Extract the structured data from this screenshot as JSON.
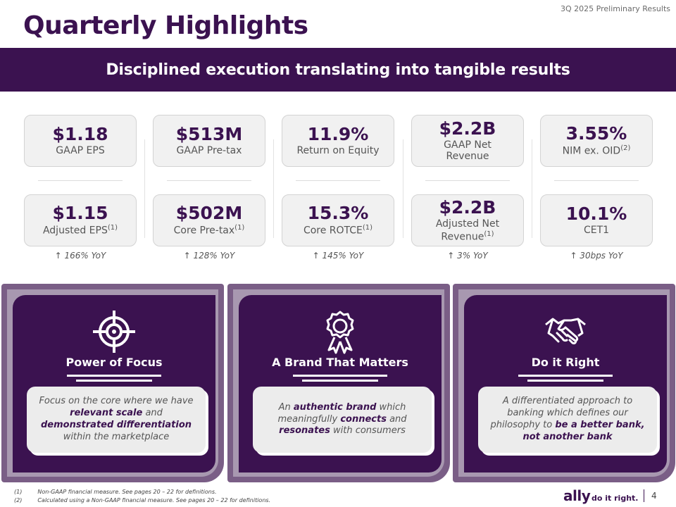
{
  "header": {
    "deck_label": "3Q 2025 Preliminary Results",
    "title": "Quarterly Highlights"
  },
  "banner": {
    "text": "Disciplined execution translating into tangible results"
  },
  "metrics_top": [
    {
      "value": "$1.18",
      "label": "GAAP EPS",
      "sup": ""
    },
    {
      "value": "$513M",
      "label": "GAAP Pre-tax",
      "sup": ""
    },
    {
      "value": "11.9%",
      "label": "Return on Equity",
      "sup": ""
    },
    {
      "value": "$2.2B",
      "label": "GAAP Net Revenue",
      "sup": ""
    },
    {
      "value": "3.55%",
      "label": "NIM ex. OID",
      "sup": "(2)"
    }
  ],
  "metrics_bottom": [
    {
      "value": "$1.15",
      "label": "Adjusted EPS",
      "sup": "(1)",
      "yoy": "↑ 166% YoY"
    },
    {
      "value": "$502M",
      "label": "Core Pre-tax",
      "sup": "(1)",
      "yoy": "↑ 128% YoY"
    },
    {
      "value": "15.3%",
      "label": "Core ROTCE",
      "sup": "(1)",
      "yoy": "↑ 145% YoY"
    },
    {
      "value": "$2.2B",
      "label": "Adjusted Net Revenue",
      "sup": "(1)",
      "yoy": "↑ 3% YoY"
    },
    {
      "value": "10.1%",
      "label": "CET1",
      "sup": "",
      "yoy": "↑ 30bps YoY"
    }
  ],
  "panels": [
    {
      "title": "Power of Focus",
      "icon": "target-icon",
      "parts": [
        "Focus on the core where we have ",
        "relevant scale",
        " and ",
        "demonstrated differentiation",
        " within the marketplace"
      ]
    },
    {
      "title": "A Brand That Matters",
      "icon": "award-ribbon-icon",
      "parts": [
        "An ",
        "authentic brand",
        " which meaningfully ",
        "connects",
        " and ",
        "resonates",
        " with consumers"
      ]
    },
    {
      "title": "Do it Right",
      "icon": "handshake-icon",
      "parts": [
        "A differentiated approach to banking which defines our philosophy to ",
        "be a better bank, not another bank"
      ]
    }
  ],
  "footnotes": [
    {
      "marker": "(1)",
      "text": "Non-GAAP financial measure. See pages 20 – 22 for definitions."
    },
    {
      "marker": "(2)",
      "text": "Calculated using a Non-GAAP financial measure. See pages 20 – 22 for definitions."
    }
  ],
  "footer": {
    "brand": "ally",
    "tagline": "do it right.",
    "page_number": "4"
  },
  "colors": {
    "primary": "#3b1250",
    "panel_border": "#7a5e86",
    "panel_border_light": "#a898b0",
    "card_bg": "#f1f1f1"
  }
}
